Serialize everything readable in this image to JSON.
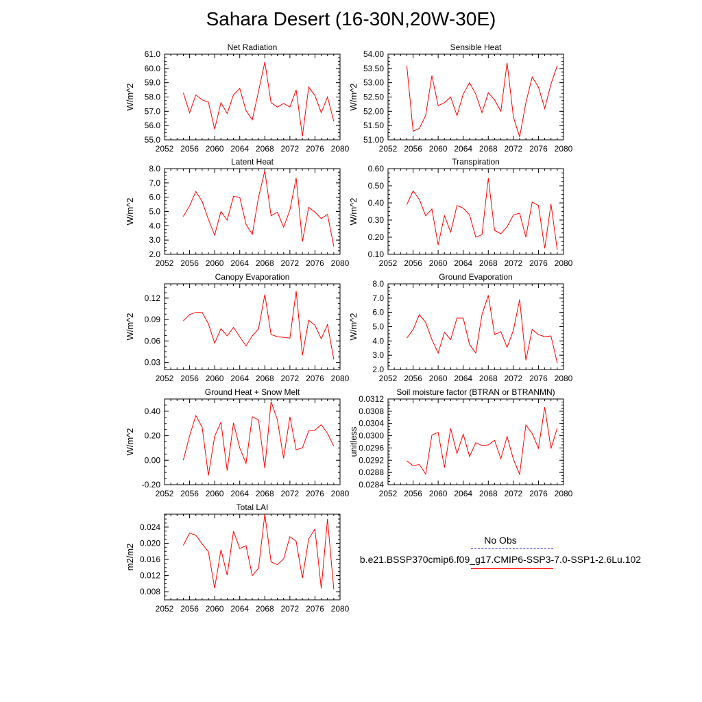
{
  "title": "Sahara Desert (16-30N,20W-30E)",
  "legend": {
    "obs_label": "No Obs",
    "obs_color": "#3b3bd0",
    "case_label": "b.e21.BSSP370cmip6.f09_g17.CMIP6-SSP3-7.0-SSP1-2.6Lu.102",
    "case_color": "#ff0000"
  },
  "chart_data": [
    {
      "type": "line",
      "title": "Net Radiation",
      "ylabel": "W/m^2",
      "xlim": [
        2052,
        2080
      ],
      "ylim": [
        55.0,
        61.0
      ],
      "xticks": [
        2052,
        2056,
        2060,
        2064,
        2068,
        2072,
        2076,
        2080
      ],
      "yticks": [
        "55.0",
        "56.0",
        "57.0",
        "58.0",
        "59.0",
        "60.0",
        "61.0"
      ],
      "x": [
        2055,
        2056,
        2057,
        2058,
        2059,
        2060,
        2061,
        2062,
        2063,
        2064,
        2065,
        2066,
        2067,
        2068,
        2069,
        2070,
        2071,
        2072,
        2073,
        2074,
        2075,
        2076,
        2077,
        2078,
        2079
      ],
      "series": [
        {
          "values": [
            58.3,
            56.9,
            58.15,
            57.8,
            57.65,
            55.75,
            57.6,
            56.85,
            58.15,
            58.6,
            57.05,
            56.4,
            58.4,
            60.45,
            57.6,
            57.3,
            57.55,
            57.3,
            58.5,
            55.25,
            58.7,
            58.1,
            56.9,
            58.0,
            56.3
          ],
          "color": "#ff0000"
        }
      ]
    },
    {
      "type": "line",
      "title": "Sensible Heat",
      "ylabel": "W/m^2",
      "xlim": [
        2052,
        2080
      ],
      "ylim": [
        51.0,
        54.0
      ],
      "xticks": [
        2052,
        2056,
        2060,
        2064,
        2068,
        2072,
        2076,
        2080
      ],
      "yticks": [
        "51.00",
        "51.50",
        "52.00",
        "52.50",
        "53.00",
        "53.50",
        "54.00"
      ],
      "x": [
        2055,
        2056,
        2057,
        2058,
        2059,
        2060,
        2061,
        2062,
        2063,
        2064,
        2065,
        2066,
        2067,
        2068,
        2069,
        2070,
        2071,
        2072,
        2073,
        2074,
        2075,
        2076,
        2077,
        2078,
        2079
      ],
      "series": [
        {
          "values": [
            53.6,
            51.3,
            51.4,
            51.85,
            53.25,
            52.2,
            52.3,
            52.5,
            51.85,
            52.6,
            53.0,
            52.6,
            51.95,
            52.65,
            52.4,
            52.0,
            53.7,
            51.8,
            51.1,
            52.3,
            53.2,
            52.85,
            52.1,
            52.95,
            53.6
          ],
          "color": "#ff0000"
        }
      ]
    },
    {
      "type": "line",
      "title": "Latent Heat",
      "ylabel": "W/m^2",
      "xlim": [
        2052,
        2080
      ],
      "ylim": [
        2.0,
        8.0
      ],
      "xticks": [
        2052,
        2056,
        2060,
        2064,
        2068,
        2072,
        2076,
        2080
      ],
      "yticks": [
        "2.0",
        "3.0",
        "4.0",
        "5.0",
        "6.0",
        "7.0",
        "8.0"
      ],
      "x": [
        2055,
        2056,
        2057,
        2058,
        2059,
        2060,
        2061,
        2062,
        2063,
        2064,
        2065,
        2066,
        2067,
        2068,
        2069,
        2070,
        2071,
        2072,
        2073,
        2074,
        2075,
        2076,
        2077,
        2078,
        2079
      ],
      "series": [
        {
          "values": [
            4.65,
            5.4,
            6.4,
            5.7,
            4.45,
            3.35,
            5.0,
            4.4,
            6.05,
            6.0,
            4.1,
            3.4,
            6.0,
            7.85,
            4.7,
            4.95,
            3.9,
            5.1,
            7.35,
            2.9,
            5.3,
            4.95,
            4.5,
            4.8,
            2.55
          ],
          "color": "#ff0000"
        }
      ]
    },
    {
      "type": "line",
      "title": "Transpiration",
      "ylabel": "W/m^2",
      "xlim": [
        2052,
        2080
      ],
      "ylim": [
        0.1,
        0.6
      ],
      "xticks": [
        2052,
        2056,
        2060,
        2064,
        2068,
        2072,
        2076,
        2080
      ],
      "yticks": [
        "0.10",
        "0.20",
        "0.30",
        "0.40",
        "0.50",
        "0.60"
      ],
      "x": [
        2055,
        2056,
        2057,
        2058,
        2059,
        2060,
        2061,
        2062,
        2063,
        2064,
        2065,
        2066,
        2067,
        2068,
        2069,
        2070,
        2071,
        2072,
        2073,
        2074,
        2075,
        2076,
        2077,
        2078,
        2079
      ],
      "series": [
        {
          "values": [
            0.39,
            0.47,
            0.42,
            0.325,
            0.365,
            0.155,
            0.325,
            0.23,
            0.385,
            0.37,
            0.33,
            0.2,
            0.215,
            0.545,
            0.24,
            0.22,
            0.26,
            0.33,
            0.34,
            0.2,
            0.405,
            0.385,
            0.135,
            0.395,
            0.125
          ],
          "color": "#ff0000"
        }
      ]
    },
    {
      "type": "line",
      "title": "Canopy Evaporation",
      "ylabel": "W/m^2",
      "xlim": [
        2052,
        2080
      ],
      "ylim": [
        0.02,
        0.14
      ],
      "xticks": [
        2052,
        2056,
        2060,
        2064,
        2068,
        2072,
        2076,
        2080
      ],
      "yticks": [
        "0.03",
        "0.06",
        "0.09",
        "0.12"
      ],
      "ytick_values": [
        0.03,
        0.06,
        0.09,
        0.12
      ],
      "x": [
        2055,
        2056,
        2057,
        2058,
        2059,
        2060,
        2061,
        2062,
        2063,
        2064,
        2065,
        2066,
        2067,
        2068,
        2069,
        2070,
        2071,
        2072,
        2073,
        2074,
        2075,
        2076,
        2077,
        2078,
        2079
      ],
      "series": [
        {
          "values": [
            0.088,
            0.097,
            0.1,
            0.1,
            0.084,
            0.057,
            0.077,
            0.067,
            0.079,
            0.066,
            0.053,
            0.067,
            0.077,
            0.125,
            0.069,
            0.066,
            0.065,
            0.064,
            0.13,
            0.04,
            0.089,
            0.082,
            0.063,
            0.083,
            0.034
          ],
          "color": "#ff0000"
        }
      ]
    },
    {
      "type": "line",
      "title": "Ground Evaporation",
      "ylabel": "W/m^2",
      "xlim": [
        2052,
        2080
      ],
      "ylim": [
        2.0,
        8.0
      ],
      "xticks": [
        2052,
        2056,
        2060,
        2064,
        2068,
        2072,
        2076,
        2080
      ],
      "yticks": [
        "2.0",
        "3.0",
        "4.0",
        "5.0",
        "6.0",
        "7.0",
        "8.0"
      ],
      "x": [
        2055,
        2056,
        2057,
        2058,
        2059,
        2060,
        2061,
        2062,
        2063,
        2064,
        2065,
        2066,
        2067,
        2068,
        2069,
        2070,
        2071,
        2072,
        2073,
        2074,
        2075,
        2076,
        2077,
        2078,
        2079
      ],
      "series": [
        {
          "values": [
            4.2,
            4.8,
            5.85,
            5.3,
            4.1,
            3.15,
            4.6,
            4.1,
            5.6,
            5.6,
            3.75,
            3.15,
            5.85,
            7.2,
            4.45,
            4.65,
            3.55,
            4.75,
            6.9,
            2.65,
            4.8,
            4.45,
            4.3,
            4.35,
            2.45
          ],
          "color": "#ff0000"
        }
      ]
    },
    {
      "type": "line",
      "title": "Ground Heat + Snow Melt",
      "ylabel": "W/m^2",
      "xlim": [
        2052,
        2080
      ],
      "ylim": [
        -0.2,
        0.5
      ],
      "xticks": [
        2052,
        2056,
        2060,
        2064,
        2068,
        2072,
        2076,
        2080
      ],
      "yticks": [
        "-0.20",
        "0.00",
        "0.20",
        "0.40"
      ],
      "ytick_values": [
        -0.2,
        0.0,
        0.2,
        0.4
      ],
      "x": [
        2055,
        2056,
        2057,
        2058,
        2059,
        2060,
        2061,
        2062,
        2063,
        2064,
        2065,
        2066,
        2067,
        2068,
        2069,
        2070,
        2071,
        2072,
        2073,
        2074,
        2075,
        2076,
        2077,
        2078,
        2079
      ],
      "series": [
        {
          "values": [
            0.0,
            0.2,
            0.365,
            0.27,
            -0.125,
            0.195,
            0.31,
            -0.085,
            0.305,
            0.1,
            -0.025,
            0.355,
            0.33,
            -0.065,
            0.48,
            0.33,
            0.015,
            0.355,
            0.085,
            0.1,
            0.24,
            0.245,
            0.29,
            0.22,
            0.115
          ],
          "color": "#ff0000"
        }
      ]
    },
    {
      "type": "line",
      "title": "Soil moisture factor (BTRAN or BTRANMN)",
      "ylabel": "unitless",
      "xlim": [
        2052,
        2080
      ],
      "ylim": [
        0.0284,
        0.0312
      ],
      "xticks": [
        2052,
        2056,
        2060,
        2064,
        2068,
        2072,
        2076,
        2080
      ],
      "yticks": [
        "0.0284",
        "0.0288",
        "0.0292",
        "0.0296",
        "0.0300",
        "0.0304",
        "0.0308",
        "0.0312"
      ],
      "x": [
        2055,
        2056,
        2057,
        2058,
        2059,
        2060,
        2061,
        2062,
        2063,
        2064,
        2065,
        2066,
        2067,
        2068,
        2069,
        2070,
        2071,
        2072,
        2073,
        2074,
        2075,
        2076,
        2077,
        2078,
        2079
      ],
      "series": [
        {
          "values": [
            0.02918,
            0.02902,
            0.02906,
            0.02875,
            0.03002,
            0.03011,
            0.02896,
            0.03024,
            0.02942,
            0.03005,
            0.02932,
            0.02977,
            0.02968,
            0.0297,
            0.02985,
            0.02925,
            0.02997,
            0.02923,
            0.02874,
            0.03035,
            0.03007,
            0.02959,
            0.03093,
            0.02958,
            0.03025
          ],
          "color": "#ff0000"
        }
      ]
    },
    {
      "type": "line",
      "title": "Total LAI",
      "ylabel": "m2/m2",
      "xlim": [
        2052,
        2080
      ],
      "ylim": [
        0.006,
        0.0272
      ],
      "xticks": [
        2052,
        2056,
        2060,
        2064,
        2068,
        2072,
        2076,
        2080
      ],
      "yticks": [
        "0.008",
        "0.012",
        "0.016",
        "0.020",
        "0.024"
      ],
      "ytick_values": [
        0.008,
        0.012,
        0.016,
        0.02,
        0.024
      ],
      "x": [
        2055,
        2056,
        2057,
        2058,
        2059,
        2060,
        2061,
        2062,
        2063,
        2064,
        2065,
        2066,
        2067,
        2068,
        2069,
        2070,
        2071,
        2072,
        2073,
        2074,
        2075,
        2076,
        2077,
        2078,
        2079
      ],
      "series": [
        {
          "values": [
            0.0195,
            0.0225,
            0.022,
            0.0198,
            0.0179,
            0.0089,
            0.0184,
            0.0121,
            0.023,
            0.0187,
            0.0194,
            0.012,
            0.0138,
            0.0272,
            0.0154,
            0.0147,
            0.0161,
            0.0216,
            0.0205,
            0.0114,
            0.0211,
            0.0235,
            0.0088,
            0.026,
            0.0086
          ],
          "color": "#ff0000"
        }
      ]
    }
  ]
}
